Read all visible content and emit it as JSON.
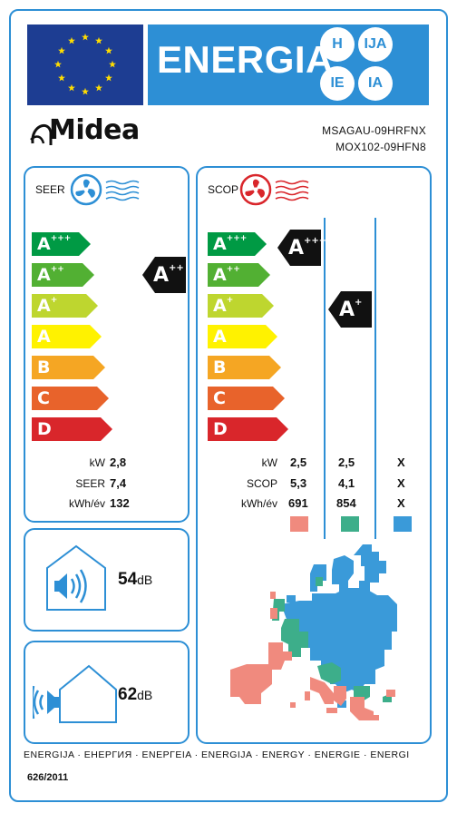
{
  "header": {
    "title": "ENERGIA",
    "badges": [
      "H",
      "IJA",
      "IE",
      "IA"
    ],
    "flag": "eu-flag",
    "colors": {
      "blue": "#2d8fd5",
      "flag_blue": "#1d3d92",
      "star": "#ffdd00"
    }
  },
  "brand": {
    "name": "Midea",
    "model_indoor": "MSAGAU-09HRFNX",
    "model_outdoor": "MOX102-09HFN8"
  },
  "classes": [
    {
      "main": "A",
      "sup": "+++",
      "color": "#009a44"
    },
    {
      "main": "A",
      "sup": "++",
      "color": "#52b033"
    },
    {
      "main": "A",
      "sup": "+",
      "color": "#bed62f"
    },
    {
      "main": "A",
      "sup": "",
      "color": "#fff200"
    },
    {
      "main": "B",
      "sup": "",
      "color": "#f5a623"
    },
    {
      "main": "C",
      "sup": "",
      "color": "#e8632b"
    },
    {
      "main": "D",
      "sup": "",
      "color": "#d9262b"
    }
  ],
  "cooling": {
    "title": "SEER",
    "icon": "cooling-fan-icon",
    "rating": {
      "main": "A",
      "sup": "++"
    },
    "kw_label": "kW",
    "kw": "2,8",
    "seer_label": "SEER",
    "seer": "7,4",
    "kwh_label": "kWh/év",
    "kwh": "132"
  },
  "heating": {
    "title": "SCOP",
    "icon": "heating-fan-icon",
    "ratings": [
      {
        "main": "A",
        "sup": "+++",
        "zone": "warmer"
      },
      {
        "main": "A",
        "sup": "+",
        "zone": "average"
      }
    ],
    "kw_label": "kW",
    "scop_label": "SCOP",
    "kwh_label": "kWh/év",
    "zones": [
      {
        "name": "warmer",
        "color": "#f08a7e",
        "kw": "2,5",
        "scop": "5,3",
        "kwh": "691"
      },
      {
        "name": "average",
        "color": "#3dae8a",
        "kw": "2,5",
        "scop": "4,1",
        "kwh": "854"
      },
      {
        "name": "colder",
        "color": "#3a9ad9",
        "kw": "X",
        "scop": "X",
        "kwh": "X"
      }
    ]
  },
  "noise": {
    "indoor_value": "54",
    "indoor_unit": "dB",
    "outdoor_value": "62",
    "outdoor_unit": "dB"
  },
  "footer": {
    "languages": "ENERGIJA · ЕНЕРГИЯ · ΕΝΕΡΓΕΙΑ · ENERGIJA · ENERGY · ENERGIE · ENERGI",
    "regulation": "626/2011"
  }
}
